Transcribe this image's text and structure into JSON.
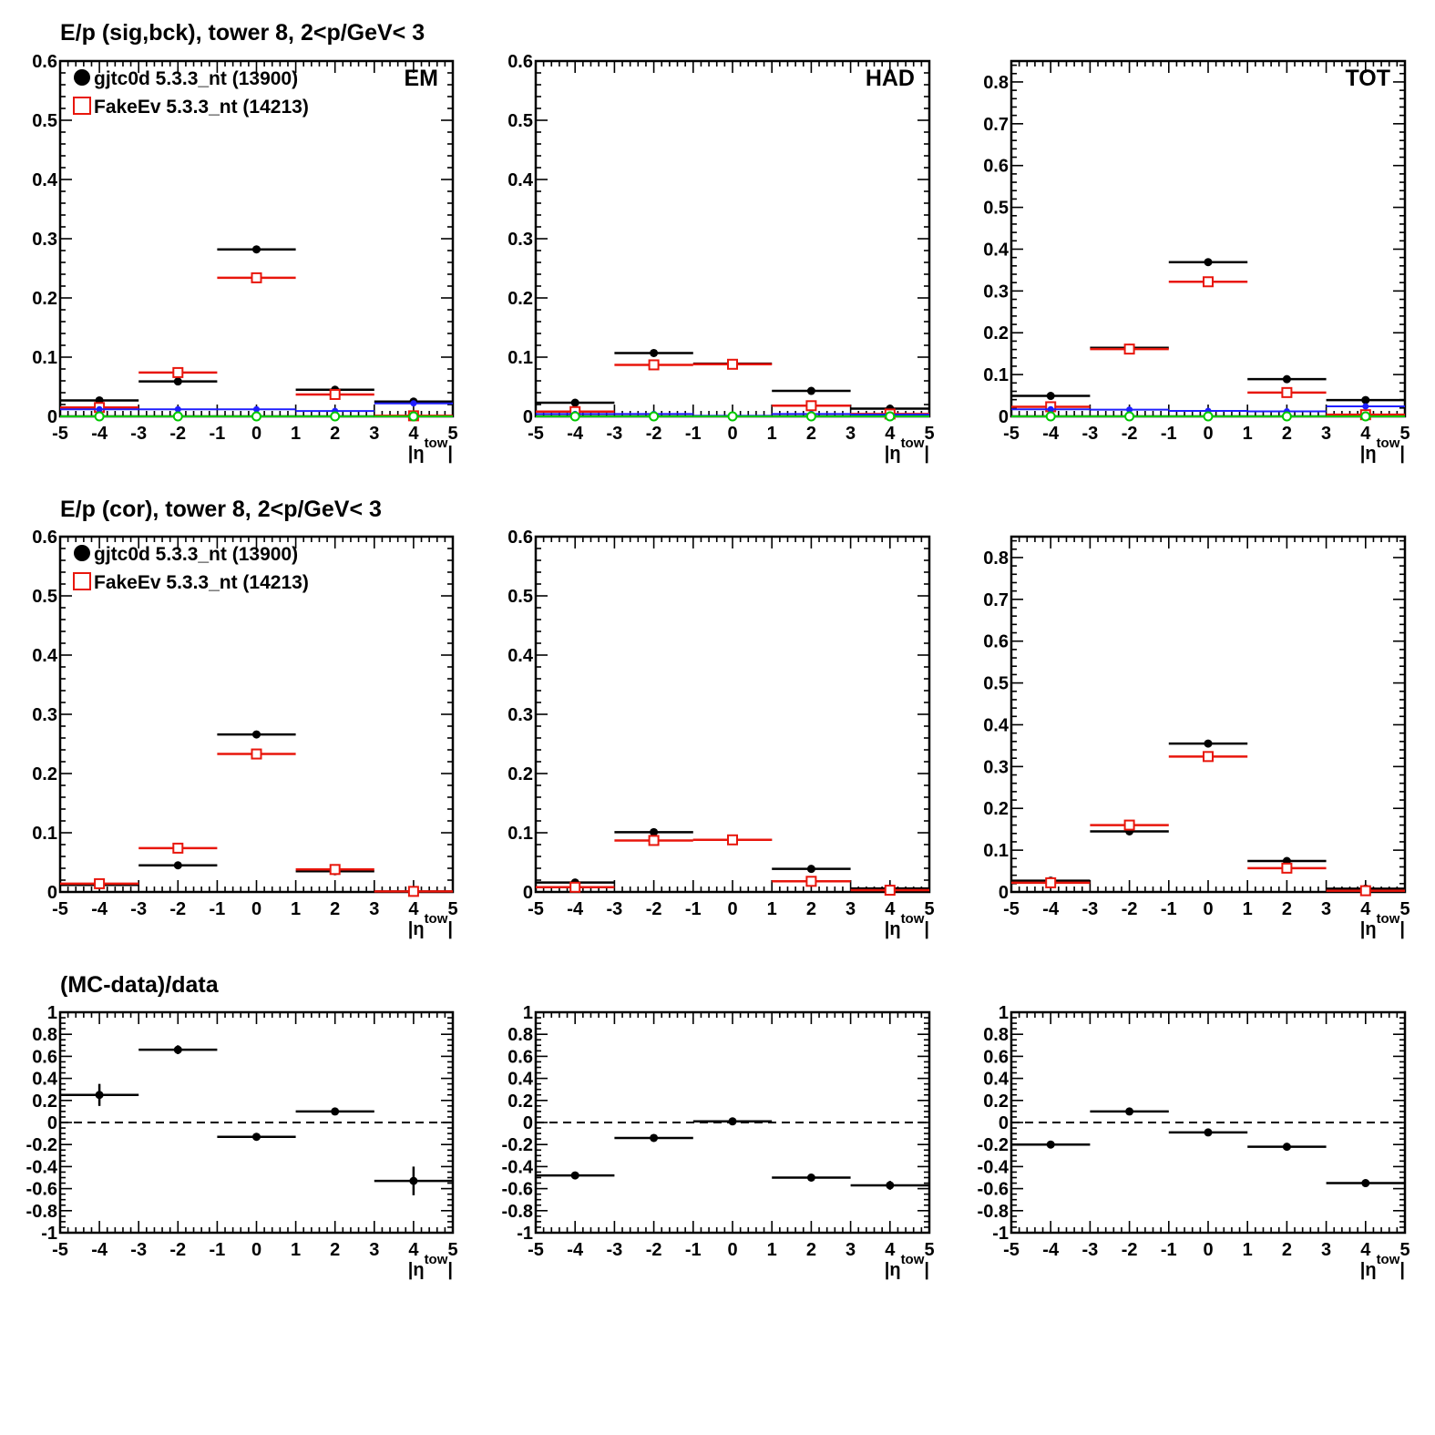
{
  "row_titles": [
    "E/p (sig,bck), tower 8,  2<p/GeV< 3",
    "E/p (cor), tower 8,  2<p/GeV< 3",
    "(MC-data)/data"
  ],
  "panel_labels": [
    "EM",
    "HAD",
    "TOT"
  ],
  "xlabel": "|ηtow|",
  "legend": [
    {
      "label": "gjtc0d 5.3.3_nt (13900)",
      "color": "#000000",
      "marker": "filled-circle"
    },
    {
      "label": "FakeEv 5.3.3_nt (14213)",
      "color": "#e8160c",
      "marker": "open-square"
    }
  ],
  "colors": {
    "data": "#000000",
    "mc": "#e8160c",
    "bck_data": "#1f1fff",
    "bck_mc": "#00c800"
  },
  "chart_data": [
    {
      "type": "scatter",
      "row": 0,
      "col": 0,
      "label": "EM",
      "xlim": [
        -5,
        5
      ],
      "ylim": [
        0,
        0.6
      ],
      "xticks": [
        -5,
        -4,
        -3,
        -2,
        -1,
        0,
        1,
        2,
        3,
        4,
        5
      ],
      "yticks": [
        0,
        0.1,
        0.2,
        0.3,
        0.4,
        0.5,
        0.6
      ],
      "ytick_labels": [
        "0",
        "0.1",
        "0.2",
        "0.3",
        "0.4",
        "0.5",
        "0.6"
      ],
      "x": [
        -4,
        -2,
        0,
        2,
        4
      ],
      "xerr": 1,
      "series": [
        {
          "name": "gjtc0d 5.3.3_nt (13900)",
          "color": "#000000",
          "marker": "filled-circle",
          "y": [
            0.027,
            0.059,
            0.282,
            0.045,
            0.025
          ]
        },
        {
          "name": "FakeEv 5.3.3_nt (14213)",
          "color": "#e8160c",
          "marker": "open-square",
          "y": [
            0.015,
            0.074,
            0.234,
            0.037,
            0.001
          ]
        },
        {
          "color": "#1f1fff",
          "marker": "small-dot",
          "y": [
            0.012,
            0.012,
            0.012,
            0.009,
            0.022
          ]
        },
        {
          "color": "#00c800",
          "marker": "open-circle",
          "y": [
            0.0,
            0.0,
            0.0,
            0.0,
            0.0
          ]
        }
      ]
    },
    {
      "type": "scatter",
      "row": 0,
      "col": 1,
      "label": "HAD",
      "xlim": [
        -5,
        5
      ],
      "ylim": [
        0,
        0.6
      ],
      "xticks": [
        -5,
        -4,
        -3,
        -2,
        -1,
        0,
        1,
        2,
        3,
        4,
        5
      ],
      "yticks": [
        0,
        0.1,
        0.2,
        0.3,
        0.4,
        0.5,
        0.6
      ],
      "ytick_labels": [
        "0",
        "0.1",
        "0.2",
        "0.3",
        "0.4",
        "0.5",
        "0.6"
      ],
      "x": [
        -4,
        -2,
        0,
        2,
        4
      ],
      "xerr": 1,
      "series": [
        {
          "name": "gjtc0d 5.3.3_nt (13900)",
          "color": "#000000",
          "marker": "filled-circle",
          "y": [
            0.023,
            0.107,
            0.089,
            0.043,
            0.013
          ]
        },
        {
          "name": "FakeEv 5.3.3_nt (14213)",
          "color": "#e8160c",
          "marker": "open-square",
          "y": [
            0.008,
            0.087,
            0.088,
            0.018,
            0.004
          ]
        },
        {
          "color": "#1f1fff",
          "marker": "small-dot",
          "y": [
            0.004,
            0.004,
            0.001,
            0.004,
            0.003
          ]
        },
        {
          "color": "#00c800",
          "marker": "open-circle",
          "y": [
            0.0,
            0.0,
            0.0,
            0.0,
            0.0
          ]
        }
      ]
    },
    {
      "type": "scatter",
      "row": 0,
      "col": 2,
      "label": "TOT",
      "xlim": [
        -5,
        5
      ],
      "ylim": [
        0,
        0.85
      ],
      "xticks": [
        -5,
        -4,
        -3,
        -2,
        -1,
        0,
        1,
        2,
        3,
        4,
        5
      ],
      "yticks": [
        0,
        0.1,
        0.2,
        0.3,
        0.4,
        0.5,
        0.6,
        0.7,
        0.8
      ],
      "ytick_labels": [
        "0",
        "0.1",
        "0.2",
        "0.3",
        "0.4",
        "0.5",
        "0.6",
        "0.7",
        "0.8"
      ],
      "x": [
        -4,
        -2,
        0,
        2,
        4
      ],
      "xerr": 1,
      "series": [
        {
          "name": "gjtc0d 5.3.3_nt (13900)",
          "color": "#000000",
          "marker": "filled-circle",
          "y": [
            0.049,
            0.164,
            0.369,
            0.089,
            0.039
          ]
        },
        {
          "name": "FakeEv 5.3.3_nt (14213)",
          "color": "#e8160c",
          "marker": "open-square",
          "y": [
            0.023,
            0.161,
            0.322,
            0.057,
            0.004
          ]
        },
        {
          "color": "#1f1fff",
          "marker": "small-dot",
          "y": [
            0.017,
            0.016,
            0.013,
            0.012,
            0.024
          ]
        },
        {
          "color": "#00c800",
          "marker": "open-circle",
          "y": [
            0.0,
            0.0,
            0.0,
            0.0,
            0.0
          ]
        }
      ]
    },
    {
      "type": "scatter",
      "row": 1,
      "col": 0,
      "xlim": [
        -5,
        5
      ],
      "ylim": [
        0,
        0.6
      ],
      "xticks": [
        -5,
        -4,
        -3,
        -2,
        -1,
        0,
        1,
        2,
        3,
        4,
        5
      ],
      "yticks": [
        0,
        0.1,
        0.2,
        0.3,
        0.4,
        0.5,
        0.6
      ],
      "ytick_labels": [
        "0",
        "0.1",
        "0.2",
        "0.3",
        "0.4",
        "0.5",
        "0.6"
      ],
      "x": [
        -4,
        -2,
        0,
        2,
        4
      ],
      "xerr": 1,
      "series": [
        {
          "name": "gjtc0d 5.3.3_nt (13900)",
          "color": "#000000",
          "marker": "filled-circle",
          "y": [
            0.012,
            0.045,
            0.266,
            0.035,
            0.001
          ]
        },
        {
          "name": "FakeEv 5.3.3_nt (14213)",
          "color": "#e8160c",
          "marker": "open-square",
          "y": [
            0.014,
            0.074,
            0.233,
            0.038,
            0.001
          ]
        }
      ]
    },
    {
      "type": "scatter",
      "row": 1,
      "col": 1,
      "xlim": [
        -5,
        5
      ],
      "ylim": [
        0,
        0.6
      ],
      "xticks": [
        -5,
        -4,
        -3,
        -2,
        -1,
        0,
        1,
        2,
        3,
        4,
        5
      ],
      "yticks": [
        0,
        0.1,
        0.2,
        0.3,
        0.4,
        0.5,
        0.6
      ],
      "ytick_labels": [
        "0",
        "0.1",
        "0.2",
        "0.3",
        "0.4",
        "0.5",
        "0.6"
      ],
      "x": [
        -4,
        -2,
        0,
        2,
        4
      ],
      "xerr": 1,
      "series": [
        {
          "name": "gjtc0d 5.3.3_nt (13900)",
          "color": "#000000",
          "marker": "filled-circle",
          "y": [
            0.016,
            0.101,
            0.088,
            0.039,
            0.006
          ]
        },
        {
          "name": "FakeEv 5.3.3_nt (14213)",
          "color": "#e8160c",
          "marker": "open-square",
          "y": [
            0.008,
            0.087,
            0.088,
            0.018,
            0.003
          ]
        }
      ]
    },
    {
      "type": "scatter",
      "row": 1,
      "col": 2,
      "xlim": [
        -5,
        5
      ],
      "ylim": [
        0,
        0.85
      ],
      "xticks": [
        -5,
        -4,
        -3,
        -2,
        -1,
        0,
        1,
        2,
        3,
        4,
        5
      ],
      "yticks": [
        0,
        0.1,
        0.2,
        0.3,
        0.4,
        0.5,
        0.6,
        0.7,
        0.8
      ],
      "ytick_labels": [
        "0",
        "0.1",
        "0.2",
        "0.3",
        "0.4",
        "0.5",
        "0.6",
        "0.7",
        "0.8"
      ],
      "x": [
        -4,
        -2,
        0,
        2,
        4
      ],
      "xerr": 1,
      "series": [
        {
          "name": "gjtc0d 5.3.3_nt (13900)",
          "color": "#000000",
          "marker": "filled-circle",
          "y": [
            0.027,
            0.145,
            0.355,
            0.074,
            0.008
          ]
        },
        {
          "name": "FakeEv 5.3.3_nt (14213)",
          "color": "#e8160c",
          "marker": "open-square",
          "y": [
            0.022,
            0.16,
            0.324,
            0.057,
            0.003
          ]
        }
      ]
    },
    {
      "type": "scatter",
      "row": 2,
      "col": 0,
      "xlim": [
        -5,
        5
      ],
      "ylim": [
        -1,
        1
      ],
      "xticks": [
        -5,
        -4,
        -3,
        -2,
        -1,
        0,
        1,
        2,
        3,
        4,
        5
      ],
      "yticks": [
        -1,
        -0.8,
        -0.6,
        -0.4,
        -0.2,
        0,
        0.2,
        0.4,
        0.6,
        0.8,
        1
      ],
      "ytick_labels": [
        "-1",
        "-0.8",
        "-0.6",
        "-0.4",
        "-0.2",
        "0",
        "0.2",
        "0.4",
        "0.6",
        "0.8",
        "1"
      ],
      "reference_line": 0,
      "x": [
        -4,
        -2,
        0,
        2,
        4
      ],
      "xerr": 1,
      "series": [
        {
          "color": "#000000",
          "marker": "filled-circle",
          "y": [
            0.25,
            0.66,
            -0.13,
            0.1,
            -0.53
          ],
          "yerr": [
            0.1,
            0.04,
            0.01,
            0.02,
            0.13
          ]
        }
      ]
    },
    {
      "type": "scatter",
      "row": 2,
      "col": 1,
      "xlim": [
        -5,
        5
      ],
      "ylim": [
        -1,
        1
      ],
      "xticks": [
        -5,
        -4,
        -3,
        -2,
        -1,
        0,
        1,
        2,
        3,
        4,
        5
      ],
      "yticks": [
        -1,
        -0.8,
        -0.6,
        -0.4,
        -0.2,
        0,
        0.2,
        0.4,
        0.6,
        0.8,
        1
      ],
      "ytick_labels": [
        "-1",
        "-0.8",
        "-0.6",
        "-0.4",
        "-0.2",
        "0",
        "0.2",
        "0.4",
        "0.6",
        "0.8",
        "1"
      ],
      "reference_line": 0,
      "x": [
        -4,
        -2,
        0,
        2,
        4
      ],
      "xerr": 1,
      "series": [
        {
          "color": "#000000",
          "marker": "filled-circle",
          "y": [
            -0.48,
            -0.14,
            0.01,
            -0.5,
            -0.57
          ],
          "yerr": [
            0.01,
            0.01,
            0.01,
            0.01,
            0.04
          ]
        }
      ]
    },
    {
      "type": "scatter",
      "row": 2,
      "col": 2,
      "xlim": [
        -5,
        5
      ],
      "ylim": [
        -1,
        1
      ],
      "xticks": [
        -5,
        -4,
        -3,
        -2,
        -1,
        0,
        1,
        2,
        3,
        4,
        5
      ],
      "yticks": [
        -1,
        -0.8,
        -0.6,
        -0.4,
        -0.2,
        0,
        0.2,
        0.4,
        0.6,
        0.8,
        1
      ],
      "ytick_labels": [
        "-1",
        "-0.8",
        "-0.6",
        "-0.4",
        "-0.2",
        "0",
        "0.2",
        "0.4",
        "0.6",
        "0.8",
        "1"
      ],
      "reference_line": 0,
      "x": [
        -4,
        -2,
        0,
        2,
        4
      ],
      "xerr": 1,
      "series": [
        {
          "color": "#000000",
          "marker": "filled-circle",
          "y": [
            -0.2,
            0.1,
            -0.09,
            -0.22,
            -0.55
          ],
          "yerr": [
            0.01,
            0.01,
            0.01,
            0.01,
            0.03
          ]
        }
      ]
    }
  ]
}
